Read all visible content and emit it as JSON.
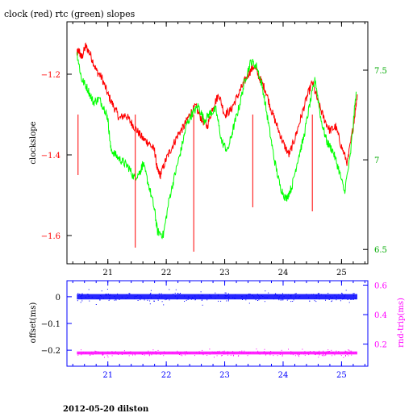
{
  "title": "clock (red) rtc (green) slopes",
  "footer": "2012-05-20 dilston",
  "colors": {
    "clock": "#ff0000",
    "rtc": "#00ff00",
    "offset": "#0000ff",
    "rndtrip": "#ff00ff",
    "axis_top": "#000000",
    "axis_bottom": "#0000ff"
  },
  "chart_data": [
    {
      "type": "line",
      "title": "clock (red) rtc (green) slopes",
      "xlabel": "",
      "ylabel": "clockslope",
      "y2label": "",
      "xlim": [
        20.3,
        25.45
      ],
      "ylim": [
        -1.67,
        -1.07
      ],
      "y2lim": [
        6.42,
        7.77
      ],
      "x_ticks": [
        21,
        22,
        23,
        24,
        25
      ],
      "x_tick_labels": [
        "21",
        "22",
        "23",
        "24",
        "25"
      ],
      "y_ticks": [
        -1.2,
        -1.4,
        -1.6
      ],
      "y_tick_labels": [
        "−1.2",
        "−1.4",
        "−1.6"
      ],
      "y2_ticks": [
        7.5,
        7,
        6.5
      ],
      "y2_tick_labels": [
        "7.5",
        "7",
        "6.5"
      ],
      "grid": false,
      "series": [
        {
          "name": "clock",
          "axis": "left",
          "color": "#ff0000",
          "x": [
            20.47,
            20.5,
            20.55,
            20.62,
            20.7,
            20.8,
            20.9,
            21.0,
            21.1,
            21.2,
            21.3,
            21.4,
            21.5,
            21.6,
            21.7,
            21.8,
            21.85,
            21.9,
            22.0,
            22.1,
            22.2,
            22.3,
            22.4,
            22.5,
            22.6,
            22.7,
            22.8,
            22.9,
            23.0,
            23.1,
            23.2,
            23.3,
            23.4,
            23.5,
            23.6,
            23.7,
            23.8,
            23.9,
            24.0,
            24.1,
            24.2,
            24.3,
            24.4,
            24.5,
            24.6,
            24.7,
            24.8,
            24.9,
            25.0,
            25.1,
            25.2,
            25.27
          ],
          "y": [
            -1.15,
            -1.14,
            -1.16,
            -1.13,
            -1.15,
            -1.19,
            -1.21,
            -1.25,
            -1.28,
            -1.31,
            -1.3,
            -1.32,
            -1.34,
            -1.36,
            -1.37,
            -1.39,
            -1.44,
            -1.45,
            -1.41,
            -1.38,
            -1.35,
            -1.33,
            -1.3,
            -1.28,
            -1.31,
            -1.33,
            -1.28,
            -1.25,
            -1.3,
            -1.29,
            -1.26,
            -1.23,
            -1.2,
            -1.18,
            -1.21,
            -1.24,
            -1.29,
            -1.33,
            -1.37,
            -1.4,
            -1.36,
            -1.31,
            -1.26,
            -1.22,
            -1.27,
            -1.31,
            -1.34,
            -1.33,
            -1.38,
            -1.42,
            -1.33,
            -1.25
          ]
        },
        {
          "name": "rtc",
          "axis": "right",
          "color": "#00ff00",
          "x": [
            20.47,
            20.55,
            20.65,
            20.75,
            20.85,
            20.95,
            21.0,
            21.05,
            21.15,
            21.25,
            21.35,
            21.45,
            21.55,
            21.6,
            21.7,
            21.8,
            21.85,
            21.95,
            22.05,
            22.15,
            22.25,
            22.35,
            22.45,
            22.55,
            22.65,
            22.75,
            22.85,
            22.95,
            23.05,
            23.15,
            23.25,
            23.35,
            23.45,
            23.55,
            23.65,
            23.75,
            23.85,
            23.95,
            24.05,
            24.15,
            24.25,
            24.35,
            24.45,
            24.55,
            24.65,
            24.75,
            24.85,
            24.95,
            25.05,
            25.15,
            25.25
          ],
          "y": [
            7.6,
            7.45,
            7.4,
            7.32,
            7.34,
            7.28,
            7.23,
            7.06,
            7.02,
            6.99,
            6.96,
            6.9,
            6.93,
            6.98,
            6.86,
            6.72,
            6.6,
            6.58,
            6.78,
            6.92,
            7.05,
            7.2,
            7.26,
            7.3,
            7.22,
            7.26,
            7.28,
            7.1,
            7.05,
            7.18,
            7.3,
            7.45,
            7.55,
            7.52,
            7.4,
            7.2,
            7.0,
            6.85,
            6.78,
            6.85,
            7.0,
            7.12,
            7.3,
            7.45,
            7.22,
            7.1,
            7.05,
            6.95,
            6.82,
            7.02,
            7.38
          ]
        }
      ]
    },
    {
      "type": "scatter",
      "xlabel": "",
      "ylabel": "offset(ms)",
      "y2label": "rnd-trip(ms)",
      "xlim": [
        20.3,
        25.45
      ],
      "ylim": [
        -0.26,
        0.06
      ],
      "y2lim": [
        0.05,
        0.63
      ],
      "x_ticks": [
        21,
        22,
        23,
        24,
        25
      ],
      "x_tick_labels": [
        "21",
        "22",
        "23",
        "24",
        "25"
      ],
      "y_ticks": [
        0,
        -0.1,
        -0.2
      ],
      "y_tick_labels": [
        "0",
        "−0.1",
        "−0.2"
      ],
      "y2_ticks": [
        0.6,
        0.4,
        0.2
      ],
      "y2_tick_labels": [
        "0.6",
        "0.4",
        "0.2"
      ],
      "grid": false,
      "series": [
        {
          "name": "offset",
          "axis": "left",
          "color": "#0000ff",
          "x_range": [
            20.47,
            25.27
          ],
          "center": 0.0,
          "spread": 0.01
        },
        {
          "name": "rnd-trip",
          "axis": "right",
          "color": "#ff00ff",
          "x_range": [
            20.47,
            25.27
          ],
          "center": 0.14,
          "spread": 0.01
        }
      ]
    }
  ]
}
